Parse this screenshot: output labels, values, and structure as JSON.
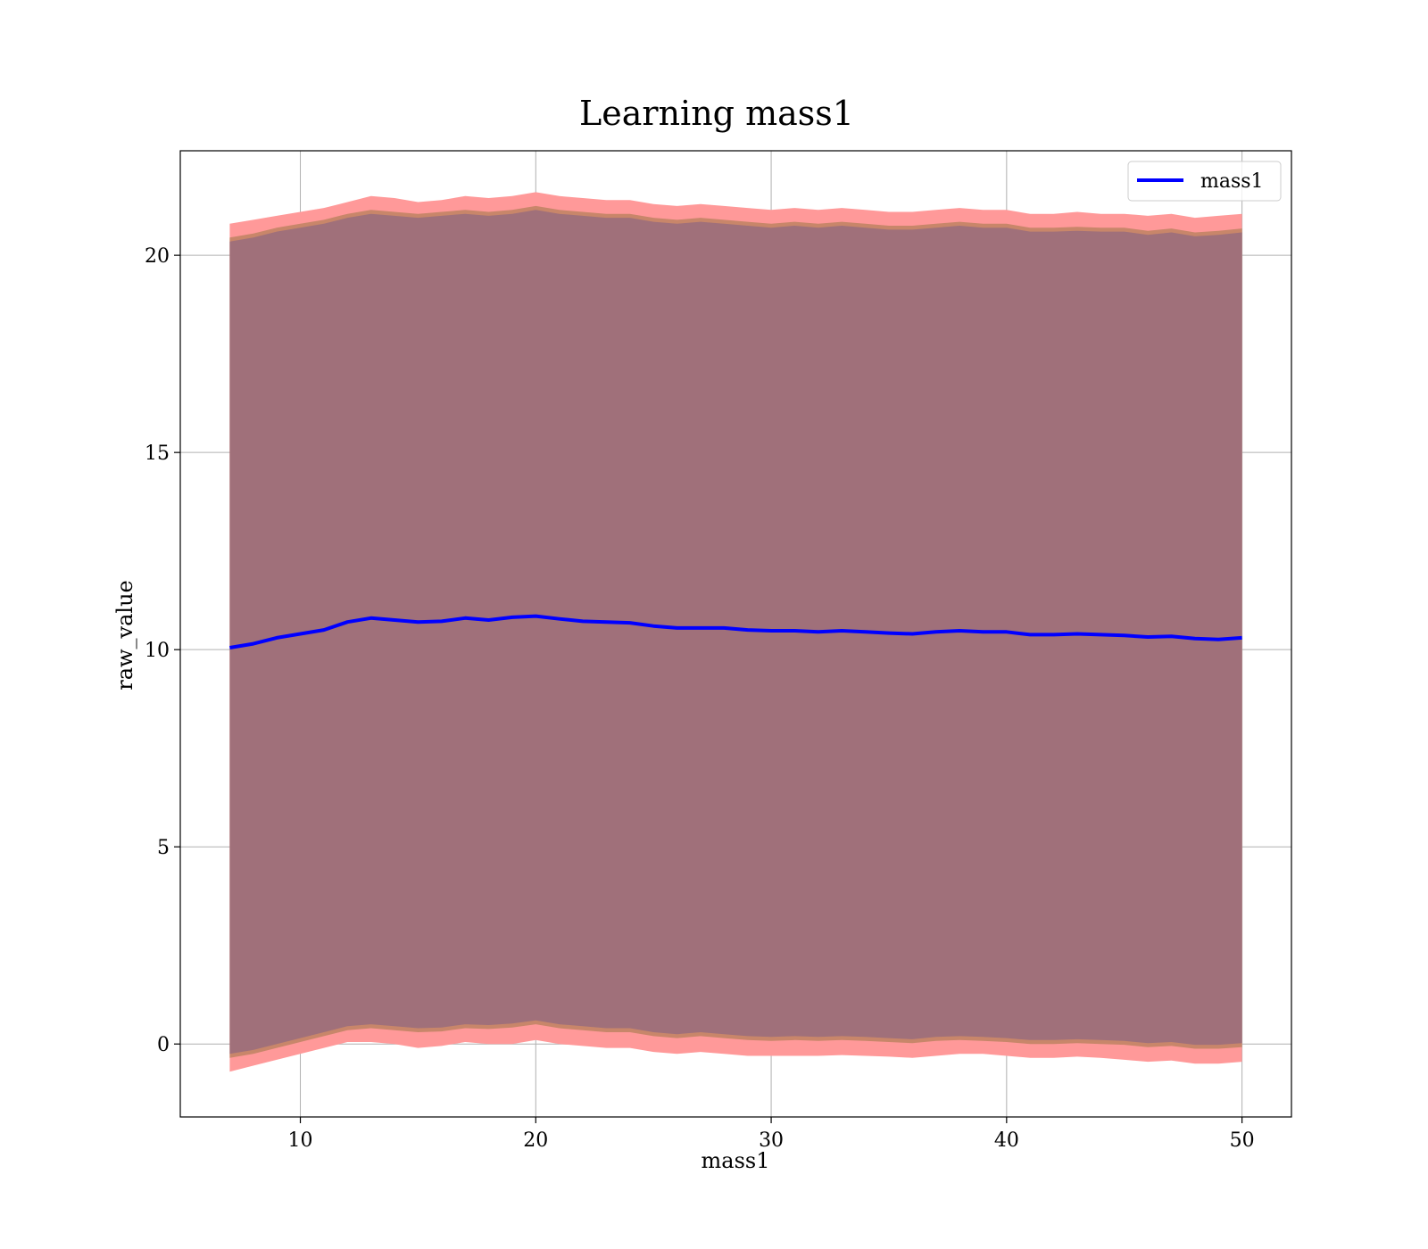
{
  "chart_data": {
    "type": "line",
    "title": "Learning mass1",
    "xlabel": "mass1",
    "ylabel": "raw_value",
    "xlim": [
      4.9,
      52.1
    ],
    "ylim": [
      -1.85,
      22.65
    ],
    "xticks": [
      10,
      20,
      30,
      40,
      50
    ],
    "yticks": [
      0,
      5,
      10,
      15,
      20
    ],
    "grid": true,
    "legend_position": "top-right",
    "colors": {
      "line": "#0000ff",
      "band_outer": "#ff9999",
      "band_middle": "#c8866a",
      "band_inner": "#a0707a",
      "axes": "#000000",
      "grid": "#b0b0b0"
    },
    "series": [
      {
        "name": "mass1",
        "x": [
          7,
          8,
          9,
          10,
          11,
          12,
          13,
          14,
          15,
          16,
          17,
          18,
          19,
          20,
          21,
          22,
          23,
          24,
          25,
          26,
          27,
          28,
          29,
          30,
          31,
          32,
          33,
          34,
          35,
          36,
          37,
          38,
          39,
          40,
          41,
          42,
          43,
          44,
          45,
          46,
          47,
          48,
          49,
          50
        ],
        "y": [
          10.05,
          10.15,
          10.3,
          10.4,
          10.5,
          10.7,
          10.8,
          10.75,
          10.7,
          10.72,
          10.8,
          10.75,
          10.82,
          10.85,
          10.78,
          10.72,
          10.7,
          10.68,
          10.6,
          10.55,
          10.55,
          10.55,
          10.5,
          10.48,
          10.48,
          10.45,
          10.48,
          10.45,
          10.42,
          10.4,
          10.45,
          10.48,
          10.45,
          10.45,
          10.38,
          10.38,
          10.4,
          10.38,
          10.36,
          10.32,
          10.34,
          10.28,
          10.26,
          10.3
        ]
      }
    ],
    "bands": [
      {
        "role": "outer",
        "lower": [
          -0.7,
          -0.55,
          -0.4,
          -0.25,
          -0.1,
          0.05,
          0.05,
          0.0,
          -0.1,
          -0.05,
          0.05,
          0.0,
          0.0,
          0.1,
          0.0,
          -0.05,
          -0.1,
          -0.1,
          -0.2,
          -0.25,
          -0.2,
          -0.25,
          -0.3,
          -0.3,
          -0.3,
          -0.3,
          -0.28,
          -0.3,
          -0.32,
          -0.35,
          -0.3,
          -0.25,
          -0.25,
          -0.3,
          -0.35,
          -0.35,
          -0.32,
          -0.35,
          -0.4,
          -0.45,
          -0.42,
          -0.5,
          -0.5,
          -0.45
        ],
        "upper": [
          20.8,
          20.9,
          21.0,
          21.1,
          21.2,
          21.35,
          21.5,
          21.45,
          21.35,
          21.4,
          21.5,
          21.45,
          21.5,
          21.6,
          21.5,
          21.45,
          21.4,
          21.4,
          21.3,
          21.25,
          21.3,
          21.25,
          21.2,
          21.15,
          21.2,
          21.15,
          21.2,
          21.15,
          21.1,
          21.1,
          21.15,
          21.2,
          21.15,
          21.15,
          21.05,
          21.05,
          21.1,
          21.05,
          21.05,
          21.0,
          21.05,
          20.95,
          21.0,
          21.05
        ]
      },
      {
        "role": "middle",
        "lower": [
          -0.35,
          -0.25,
          -0.1,
          0.05,
          0.2,
          0.35,
          0.4,
          0.35,
          0.3,
          0.32,
          0.4,
          0.38,
          0.42,
          0.5,
          0.4,
          0.35,
          0.3,
          0.3,
          0.2,
          0.15,
          0.2,
          0.15,
          0.1,
          0.08,
          0.1,
          0.08,
          0.1,
          0.08,
          0.05,
          0.02,
          0.08,
          0.1,
          0.08,
          0.05,
          0.0,
          0.0,
          0.02,
          0.0,
          -0.02,
          -0.08,
          -0.05,
          -0.12,
          -0.12,
          -0.08
        ],
        "upper": [
          20.45,
          20.55,
          20.7,
          20.8,
          20.9,
          21.05,
          21.15,
          21.1,
          21.05,
          21.1,
          21.15,
          21.1,
          21.15,
          21.25,
          21.15,
          21.1,
          21.05,
          21.05,
          20.95,
          20.9,
          20.95,
          20.9,
          20.85,
          20.8,
          20.85,
          20.8,
          20.85,
          20.8,
          20.75,
          20.75,
          20.8,
          20.85,
          20.8,
          20.8,
          20.7,
          20.7,
          20.72,
          20.7,
          20.7,
          20.62,
          20.68,
          20.58,
          20.62,
          20.68
        ]
      },
      {
        "role": "inner",
        "lower": [
          -0.25,
          -0.15,
          0.0,
          0.15,
          0.3,
          0.45,
          0.5,
          0.45,
          0.4,
          0.42,
          0.5,
          0.48,
          0.52,
          0.6,
          0.5,
          0.45,
          0.4,
          0.4,
          0.3,
          0.25,
          0.3,
          0.25,
          0.2,
          0.18,
          0.2,
          0.18,
          0.2,
          0.18,
          0.15,
          0.12,
          0.18,
          0.2,
          0.18,
          0.15,
          0.1,
          0.1,
          0.12,
          0.1,
          0.08,
          0.02,
          0.05,
          -0.02,
          -0.02,
          0.02
        ],
        "upper": [
          20.35,
          20.45,
          20.6,
          20.7,
          20.8,
          20.95,
          21.05,
          21.0,
          20.95,
          21.0,
          21.05,
          21.0,
          21.05,
          21.15,
          21.05,
          21.0,
          20.95,
          20.95,
          20.85,
          20.8,
          20.85,
          20.8,
          20.75,
          20.7,
          20.75,
          20.7,
          20.75,
          20.7,
          20.65,
          20.65,
          20.7,
          20.75,
          20.7,
          20.7,
          20.6,
          20.6,
          20.62,
          20.6,
          20.6,
          20.52,
          20.58,
          20.48,
          20.52,
          20.58
        ]
      }
    ]
  }
}
